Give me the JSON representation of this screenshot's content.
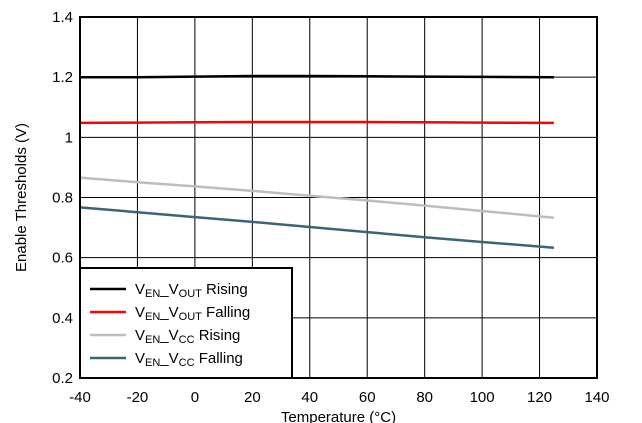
{
  "chart_data": {
    "type": "line",
    "xlabel": "Temperature (°C)",
    "ylabel": "Enable Thresholds (V)",
    "xlim": [
      -40,
      140
    ],
    "ylim": [
      0.2,
      1.4
    ],
    "x_ticks": [
      "-40",
      "-20",
      "0",
      "20",
      "40",
      "60",
      "80",
      "100",
      "120",
      "140"
    ],
    "y_ticks": [
      "0.2",
      "0.4",
      "0.6",
      "0.8",
      "1",
      "1.2",
      "1.4"
    ],
    "grid": true,
    "legend_position": "bottom-left",
    "series": [
      {
        "name": "V_EN_V_OUT Rising",
        "legend": {
          "p1": "V",
          "s1": "EN",
          "p2": "_V",
          "s2": "OUT",
          "p3": " Rising"
        },
        "color": "#000000",
        "x": [
          -40,
          -20,
          0,
          20,
          40,
          60,
          80,
          100,
          125
        ],
        "y": [
          1.2,
          1.2,
          1.202,
          1.204,
          1.204,
          1.203,
          1.202,
          1.201,
          1.2
        ]
      },
      {
        "name": "V_EN_V_OUT Falling",
        "legend": {
          "p1": "V",
          "s1": "EN",
          "p2": "_V",
          "s2": "OUT",
          "p3": " Falling"
        },
        "color": "#ff0000",
        "x": [
          -40,
          -20,
          0,
          20,
          40,
          60,
          80,
          100,
          125
        ],
        "y": [
          1.048,
          1.049,
          1.05,
          1.051,
          1.051,
          1.051,
          1.05,
          1.049,
          1.048
        ]
      },
      {
        "name": "V_EN_V_CC Rising",
        "legend": {
          "p1": "V",
          "s1": "EN",
          "p2": "_V",
          "s2": "CC",
          "p3": " Rising"
        },
        "color": "#bdbdbd",
        "x": [
          -40,
          -20,
          0,
          20,
          40,
          60,
          80,
          100,
          125
        ],
        "y": [
          0.866,
          0.851,
          0.837,
          0.822,
          0.806,
          0.79,
          0.773,
          0.755,
          0.733
        ]
      },
      {
        "name": "V_EN_V_CC Falling",
        "legend": {
          "p1": "V",
          "s1": "EN",
          "p2": "_V",
          "s2": "CC",
          "p3": " Falling"
        },
        "color": "#3c6478",
        "x": [
          -40,
          -20,
          0,
          20,
          40,
          60,
          80,
          100,
          125
        ],
        "y": [
          0.767,
          0.751,
          0.735,
          0.719,
          0.702,
          0.685,
          0.668,
          0.652,
          0.633
        ]
      }
    ]
  }
}
